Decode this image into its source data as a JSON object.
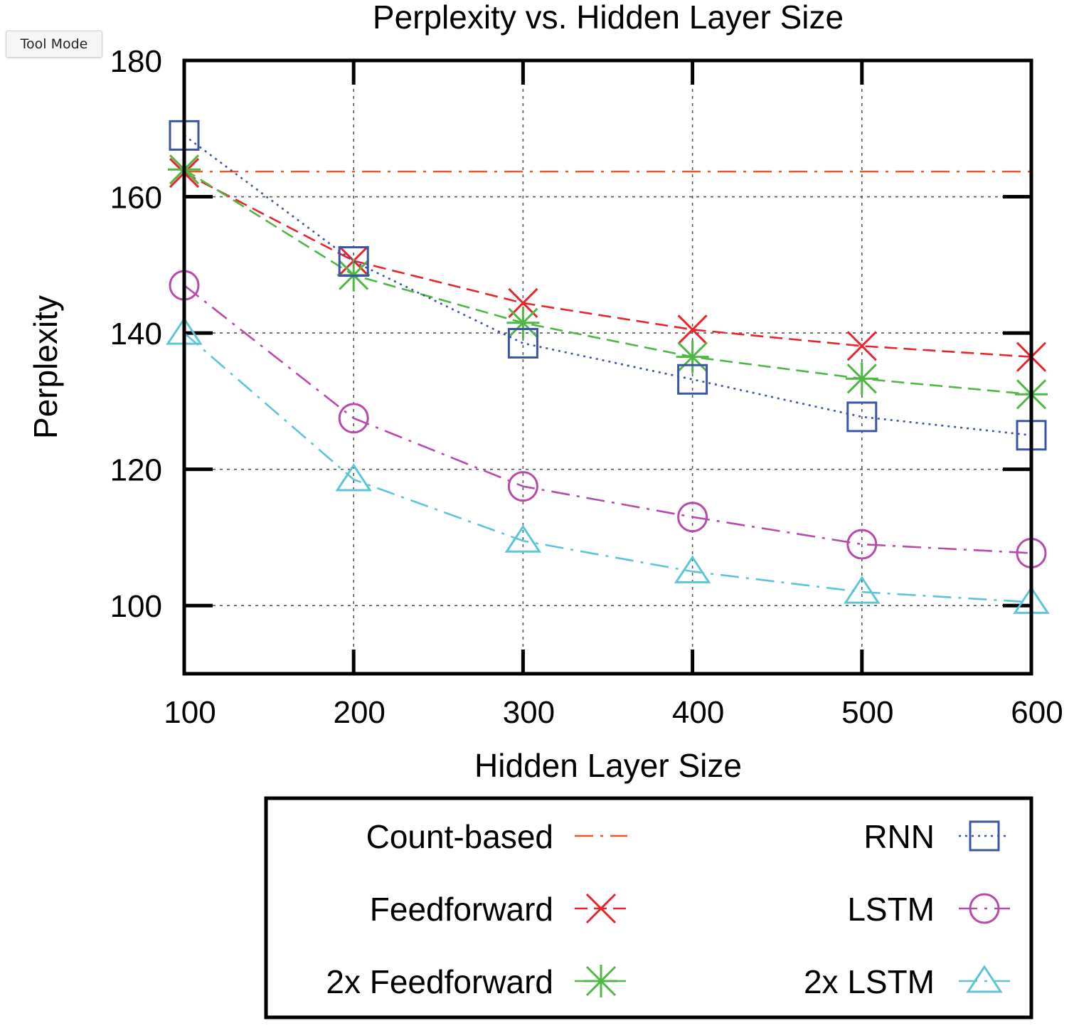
{
  "toolbar": {
    "tool_mode_label": "Tool Mode"
  },
  "chart_data": {
    "type": "line",
    "title": "Perplexity vs. Hidden Layer Size",
    "xlabel": "Hidden Layer Size",
    "ylabel": "Perplexity",
    "xlim": [
      100,
      600
    ],
    "ylim": [
      90,
      180
    ],
    "xticks": [
      "100",
      "200",
      "300",
      "400",
      "500",
      "600"
    ],
    "yticks": [
      "100",
      "120",
      "140",
      "160",
      "180"
    ],
    "grid": true,
    "legend_position": "bottom-outside",
    "x": [
      100,
      200,
      300,
      400,
      500,
      600
    ],
    "series": [
      {
        "name": "Count-based",
        "color": "#e8562a",
        "marker": "none",
        "line": "dash-dot",
        "values": [
          163.7,
          163.7,
          163.7,
          163.7,
          163.7,
          163.7
        ]
      },
      {
        "name": "Feedforward",
        "color": "#e8242c",
        "marker": "x-icon",
        "line": "dashed",
        "values": [
          163.5,
          150.6,
          144.4,
          140.5,
          138.1,
          136.5
        ]
      },
      {
        "name": "2x Feedforward",
        "color": "#4fb844",
        "marker": "asterisk-icon",
        "line": "dashed",
        "values": [
          164.0,
          148.5,
          141.5,
          136.5,
          133.3,
          131.0
        ]
      },
      {
        "name": "RNN",
        "color": "#3a55a6",
        "marker": "square-icon",
        "line": "dotted",
        "values": [
          169.0,
          150.5,
          138.5,
          133.2,
          127.7,
          125.0
        ]
      },
      {
        "name": "LSTM",
        "color": "#b84aaa",
        "marker": "circle-icon",
        "line": "dash-dot",
        "values": [
          147.0,
          127.5,
          117.5,
          113.0,
          109.0,
          107.7
        ]
      },
      {
        "name": "2x LSTM",
        "color": "#5cc6d8",
        "marker": "triangle-icon",
        "line": "dash-dot",
        "values": [
          140.0,
          118.5,
          109.5,
          105.0,
          102.0,
          100.5
        ]
      }
    ]
  }
}
